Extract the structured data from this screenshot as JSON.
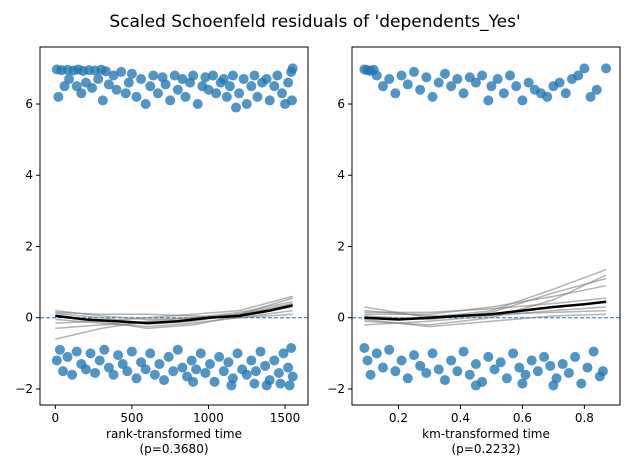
{
  "figure": {
    "title": "Scaled Schoenfeld residuals of 'dependents_Yes'"
  },
  "colors": {
    "points": "#1f77b4",
    "smooth_main": "#000000",
    "smooth_bootstrap": "#808080",
    "zero_line": "#1f77b4"
  },
  "chart_data": [
    {
      "type": "scatter",
      "xlabel": "rank-transformed time",
      "p_label": "(p=0.3680)",
      "xlim": [
        -100,
        1650
      ],
      "ylim": [
        -2.45,
        7.6
      ],
      "xticks": [
        0,
        500,
        1000,
        1500
      ],
      "xtick_labels": [
        "0",
        "500",
        "1000",
        "1500"
      ],
      "yticks": [
        -2,
        0,
        2,
        4,
        6
      ],
      "ytick_labels": [
        "−2",
        "0",
        "2",
        "4",
        "6"
      ],
      "grid": false,
      "upper_points": [
        [
          10,
          6.97
        ],
        [
          40,
          6.95
        ],
        [
          80,
          6.96
        ],
        [
          120,
          6.94
        ],
        [
          150,
          6.97
        ],
        [
          180,
          6.93
        ],
        [
          220,
          6.95
        ],
        [
          260,
          6.94
        ],
        [
          300,
          6.96
        ],
        [
          330,
          6.92
        ],
        [
          20,
          6.2
        ],
        [
          60,
          6.5
        ],
        [
          90,
          6.7
        ],
        [
          140,
          6.5
        ],
        [
          170,
          6.3
        ],
        [
          200,
          6.6
        ],
        [
          240,
          6.45
        ],
        [
          280,
          6.7
        ],
        [
          310,
          6.1
        ],
        [
          350,
          6.55
        ],
        [
          380,
          6.8
        ],
        [
          400,
          6.4
        ],
        [
          430,
          6.9
        ],
        [
          460,
          6.3
        ],
        [
          480,
          6.6
        ],
        [
          500,
          6.85
        ],
        [
          530,
          6.2
        ],
        [
          560,
          6.7
        ],
        [
          590,
          6.0
        ],
        [
          620,
          6.5
        ],
        [
          640,
          6.8
        ],
        [
          670,
          6.3
        ],
        [
          700,
          6.75
        ],
        [
          720,
          6.55
        ],
        [
          750,
          6.1
        ],
        [
          780,
          6.8
        ],
        [
          800,
          6.4
        ],
        [
          830,
          6.7
        ],
        [
          850,
          6.2
        ],
        [
          880,
          6.6
        ],
        [
          900,
          6.8
        ],
        [
          930,
          6.0
        ],
        [
          960,
          6.5
        ],
        [
          980,
          6.75
        ],
        [
          1000,
          6.4
        ],
        [
          1030,
          6.8
        ],
        [
          1050,
          6.3
        ],
        [
          1080,
          6.6
        ],
        [
          1100,
          6.7
        ],
        [
          1120,
          6.2
        ],
        [
          1140,
          6.5
        ],
        [
          1160,
          6.8
        ],
        [
          1180,
          5.9
        ],
        [
          1200,
          6.3
        ],
        [
          1230,
          6.7
        ],
        [
          1250,
          6.0
        ],
        [
          1280,
          6.5
        ],
        [
          1300,
          6.8
        ],
        [
          1320,
          6.2
        ],
        [
          1350,
          6.6
        ],
        [
          1380,
          6.7
        ],
        [
          1400,
          6.1
        ],
        [
          1430,
          6.5
        ],
        [
          1450,
          6.8
        ],
        [
          1480,
          6.3
        ],
        [
          1500,
          6.0
        ],
        [
          1520,
          6.6
        ],
        [
          1540,
          6.9
        ],
        [
          1550,
          7.0
        ],
        [
          1545,
          6.1
        ]
      ],
      "lower_points": [
        [
          10,
          -1.2
        ],
        [
          30,
          -0.9
        ],
        [
          50,
          -1.5
        ],
        [
          80,
          -1.1
        ],
        [
          110,
          -1.6
        ],
        [
          140,
          -0.95
        ],
        [
          170,
          -1.3
        ],
        [
          200,
          -1.45
        ],
        [
          230,
          -1.0
        ],
        [
          260,
          -1.55
        ],
        [
          290,
          -1.2
        ],
        [
          320,
          -0.9
        ],
        [
          350,
          -1.4
        ],
        [
          380,
          -1.6
        ],
        [
          410,
          -1.05
        ],
        [
          440,
          -1.3
        ],
        [
          470,
          -1.5
        ],
        [
          500,
          -0.95
        ],
        [
          530,
          -1.7
        ],
        [
          560,
          -1.25
        ],
        [
          590,
          -1.45
        ],
        [
          620,
          -1.0
        ],
        [
          650,
          -1.6
        ],
        [
          680,
          -1.3
        ],
        [
          710,
          -1.75
        ],
        [
          740,
          -1.1
        ],
        [
          770,
          -1.5
        ],
        [
          800,
          -0.9
        ],
        [
          830,
          -1.4
        ],
        [
          860,
          -1.65
        ],
        [
          890,
          -1.2
        ],
        [
          920,
          -1.45
        ],
        [
          950,
          -1.0
        ],
        [
          980,
          -1.55
        ],
        [
          1010,
          -1.3
        ],
        [
          1040,
          -1.8
        ],
        [
          1070,
          -1.1
        ],
        [
          1100,
          -1.5
        ],
        [
          1130,
          -1.25
        ],
        [
          1160,
          -1.7
        ],
        [
          1190,
          -1.0
        ],
        [
          1220,
          -1.45
        ],
        [
          1250,
          -1.6
        ],
        [
          1280,
          -1.2
        ],
        [
          1310,
          -1.5
        ],
        [
          1340,
          -0.95
        ],
        [
          1370,
          -1.35
        ],
        [
          1400,
          -1.75
        ],
        [
          1430,
          -1.2
        ],
        [
          1460,
          -1.55
        ],
        [
          1490,
          -1.0
        ],
        [
          1520,
          -1.4
        ],
        [
          1540,
          -0.85
        ],
        [
          1550,
          -1.65
        ],
        [
          1530,
          -1.9
        ],
        [
          1470,
          -1.85
        ],
        [
          1380,
          -1.9
        ],
        [
          1300,
          -1.85
        ],
        [
          1150,
          -1.9
        ],
        [
          900,
          -1.8
        ]
      ],
      "smooth_main": [
        [
          0,
          0.05
        ],
        [
          200,
          -0.05
        ],
        [
          400,
          -0.1
        ],
        [
          600,
          -0.15
        ],
        [
          800,
          -0.1
        ],
        [
          1000,
          0.0
        ],
        [
          1200,
          0.05
        ],
        [
          1400,
          0.2
        ],
        [
          1550,
          0.35
        ]
      ],
      "smooth_bootstrap": [
        [
          [
            0,
            0.12
          ],
          [
            300,
            0.0
          ],
          [
            600,
            -0.18
          ],
          [
            900,
            -0.1
          ],
          [
            1200,
            0.1
          ],
          [
            1550,
            0.55
          ]
        ],
        [
          [
            0,
            -0.05
          ],
          [
            300,
            -0.15
          ],
          [
            600,
            -0.25
          ],
          [
            900,
            -0.15
          ],
          [
            1200,
            0.0
          ],
          [
            1550,
            0.2
          ]
        ],
        [
          [
            0,
            0.2
          ],
          [
            300,
            0.05
          ],
          [
            600,
            -0.05
          ],
          [
            900,
            0.0
          ],
          [
            1200,
            0.15
          ],
          [
            1550,
            0.45
          ]
        ],
        [
          [
            0,
            -0.15
          ],
          [
            300,
            -0.1
          ],
          [
            600,
            -0.3
          ],
          [
            900,
            -0.2
          ],
          [
            1200,
            0.05
          ],
          [
            1550,
            0.3
          ]
        ],
        [
          [
            0,
            0.05
          ],
          [
            300,
            -0.1
          ],
          [
            600,
            0.0
          ],
          [
            900,
            0.1
          ],
          [
            1200,
            0.2
          ],
          [
            1550,
            0.6
          ]
        ],
        [
          [
            0,
            -0.6
          ],
          [
            300,
            -0.3
          ],
          [
            600,
            -0.1
          ],
          [
            900,
            0.0
          ],
          [
            1200,
            0.1
          ],
          [
            1550,
            0.4
          ]
        ],
        [
          [
            0,
            0.15
          ],
          [
            300,
            0.1
          ],
          [
            600,
            0.1
          ],
          [
            900,
            0.05
          ],
          [
            1200,
            0.0
          ],
          [
            1550,
            0.1
          ]
        ],
        [
          [
            0,
            -0.3
          ],
          [
            300,
            -0.2
          ],
          [
            600,
            -0.15
          ],
          [
            900,
            -0.05
          ],
          [
            1200,
            0.1
          ],
          [
            1550,
            0.35
          ]
        ]
      ]
    },
    {
      "type": "scatter",
      "xlabel": "km-transformed time",
      "p_label": "(p=0.2232)",
      "xlim": [
        0.05,
        0.915
      ],
      "ylim": [
        -2.45,
        7.6
      ],
      "xticks": [
        0.2,
        0.4,
        0.6,
        0.8
      ],
      "xtick_labels": [
        "0.2",
        "0.4",
        "0.6",
        "0.8"
      ],
      "yticks": [
        -2,
        0,
        2,
        4,
        6
      ],
      "ytick_labels": [
        "−2",
        "0",
        "2",
        "4",
        "6"
      ],
      "grid": false,
      "upper_points": [
        [
          0.09,
          6.97
        ],
        [
          0.1,
          6.95
        ],
        [
          0.11,
          6.93
        ],
        [
          0.12,
          6.96
        ],
        [
          0.13,
          6.8
        ],
        [
          0.15,
          6.5
        ],
        [
          0.17,
          6.7
        ],
        [
          0.19,
          6.3
        ],
        [
          0.21,
          6.8
        ],
        [
          0.23,
          6.55
        ],
        [
          0.25,
          6.9
        ],
        [
          0.27,
          6.4
        ],
        [
          0.29,
          6.75
        ],
        [
          0.31,
          6.2
        ],
        [
          0.33,
          6.6
        ],
        [
          0.35,
          6.85
        ],
        [
          0.37,
          6.5
        ],
        [
          0.39,
          6.7
        ],
        [
          0.41,
          6.3
        ],
        [
          0.43,
          6.75
        ],
        [
          0.45,
          6.6
        ],
        [
          0.47,
          6.8
        ],
        [
          0.49,
          6.1
        ],
        [
          0.5,
          6.5
        ],
        [
          0.52,
          6.7
        ],
        [
          0.54,
          6.3
        ],
        [
          0.56,
          6.8
        ],
        [
          0.58,
          6.5
        ],
        [
          0.6,
          6.1
        ],
        [
          0.62,
          6.6
        ],
        [
          0.64,
          6.4
        ],
        [
          0.66,
          6.3
        ],
        [
          0.68,
          6.2
        ],
        [
          0.7,
          6.5
        ],
        [
          0.72,
          6.6
        ],
        [
          0.74,
          6.3
        ],
        [
          0.76,
          6.7
        ],
        [
          0.78,
          6.8
        ],
        [
          0.8,
          7.0
        ],
        [
          0.82,
          6.2
        ],
        [
          0.84,
          6.4
        ],
        [
          0.87,
          7.0
        ]
      ],
      "lower_points": [
        [
          0.09,
          -0.85
        ],
        [
          0.1,
          -1.2
        ],
        [
          0.11,
          -1.6
        ],
        [
          0.13,
          -1.0
        ],
        [
          0.15,
          -1.4
        ],
        [
          0.17,
          -0.9
        ],
        [
          0.19,
          -1.5
        ],
        [
          0.21,
          -1.2
        ],
        [
          0.23,
          -1.7
        ],
        [
          0.25,
          -1.05
        ],
        [
          0.27,
          -1.35
        ],
        [
          0.29,
          -1.55
        ],
        [
          0.31,
          -1.0
        ],
        [
          0.33,
          -1.45
        ],
        [
          0.35,
          -1.75
        ],
        [
          0.37,
          -1.2
        ],
        [
          0.39,
          -1.5
        ],
        [
          0.41,
          -0.95
        ],
        [
          0.43,
          -1.6
        ],
        [
          0.45,
          -1.3
        ],
        [
          0.47,
          -1.8
        ],
        [
          0.49,
          -1.1
        ],
        [
          0.51,
          -1.45
        ],
        [
          0.53,
          -1.25
        ],
        [
          0.55,
          -1.7
        ],
        [
          0.57,
          -1.0
        ],
        [
          0.59,
          -1.4
        ],
        [
          0.61,
          -1.6
        ],
        [
          0.63,
          -1.2
        ],
        [
          0.65,
          -1.5
        ],
        [
          0.67,
          -1.1
        ],
        [
          0.69,
          -1.35
        ],
        [
          0.71,
          -1.7
        ],
        [
          0.73,
          -1.3
        ],
        [
          0.75,
          -1.55
        ],
        [
          0.77,
          -1.1
        ],
        [
          0.79,
          -1.85
        ],
        [
          0.81,
          -1.4
        ],
        [
          0.83,
          -0.95
        ],
        [
          0.85,
          -1.65
        ],
        [
          0.86,
          -1.5
        ],
        [
          0.7,
          -1.9
        ],
        [
          0.6,
          -1.85
        ],
        [
          0.45,
          -1.9
        ]
      ],
      "smooth_main": [
        [
          0.09,
          0.0
        ],
        [
          0.2,
          -0.05
        ],
        [
          0.3,
          0.0
        ],
        [
          0.4,
          0.05
        ],
        [
          0.5,
          0.1
        ],
        [
          0.6,
          0.2
        ],
        [
          0.7,
          0.3
        ],
        [
          0.8,
          0.38
        ],
        [
          0.87,
          0.45
        ]
      ],
      "smooth_bootstrap": [
        [
          [
            0.09,
            0.3
          ],
          [
            0.3,
            0.0
          ],
          [
            0.5,
            0.2
          ],
          [
            0.7,
            0.8
          ],
          [
            0.87,
            1.35
          ]
        ],
        [
          [
            0.09,
            -0.1
          ],
          [
            0.3,
            -0.2
          ],
          [
            0.5,
            0.0
          ],
          [
            0.7,
            0.5
          ],
          [
            0.87,
            1.2
          ]
        ],
        [
          [
            0.09,
            0.1
          ],
          [
            0.3,
            0.1
          ],
          [
            0.5,
            0.3
          ],
          [
            0.7,
            0.6
          ],
          [
            0.87,
            0.9
          ]
        ],
        [
          [
            0.09,
            -0.2
          ],
          [
            0.3,
            -0.1
          ],
          [
            0.5,
            0.05
          ],
          [
            0.7,
            0.2
          ],
          [
            0.87,
            0.3
          ]
        ],
        [
          [
            0.09,
            0.2
          ],
          [
            0.3,
            0.05
          ],
          [
            0.5,
            0.1
          ],
          [
            0.7,
            0.15
          ],
          [
            0.87,
            0.2
          ]
        ],
        [
          [
            0.09,
            -0.05
          ],
          [
            0.3,
            -0.25
          ],
          [
            0.5,
            -0.1
          ],
          [
            0.7,
            0.05
          ],
          [
            0.87,
            0.1
          ]
        ],
        [
          [
            0.09,
            0.15
          ],
          [
            0.3,
            0.15
          ],
          [
            0.5,
            0.25
          ],
          [
            0.7,
            0.4
          ],
          [
            0.87,
            0.55
          ]
        ],
        [
          [
            0.09,
            0.05
          ],
          [
            0.3,
            -0.05
          ],
          [
            0.5,
            0.15
          ],
          [
            0.7,
            0.7
          ],
          [
            0.87,
            1.1
          ]
        ]
      ]
    }
  ]
}
